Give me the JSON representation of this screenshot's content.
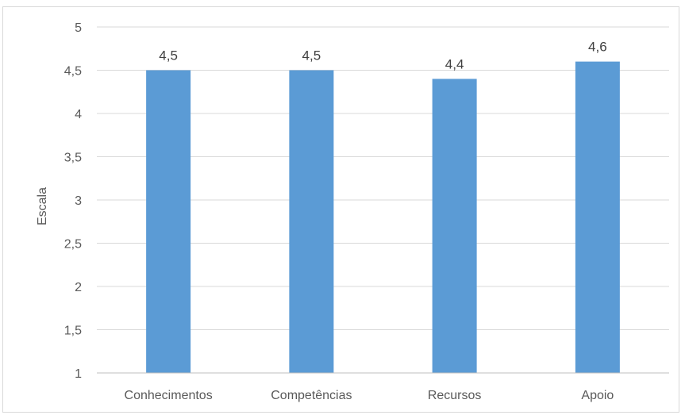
{
  "chart_data": {
    "type": "bar",
    "title": "",
    "xlabel": "",
    "ylabel": "Escala",
    "categories": [
      "Conhecimentos",
      "Competências",
      "Recursos",
      "Apoio"
    ],
    "values": [
      4.5,
      4.5,
      4.4,
      4.6
    ],
    "data_labels": [
      "4,5",
      "4,5",
      "4,4",
      "4,6"
    ],
    "ylim": [
      1,
      5
    ],
    "yticks": [
      1,
      1.5,
      2,
      2.5,
      3,
      3.5,
      4,
      4.5,
      5
    ],
    "ytick_labels": [
      "1",
      "1,5",
      "2",
      "2,5",
      "3",
      "3,5",
      "4",
      "4,5",
      "5"
    ],
    "grid": true,
    "legend": "none",
    "colors": {
      "bar": "#5b9bd5",
      "grid": "#d9d9d9",
      "axis": "#bfbfbf"
    }
  }
}
